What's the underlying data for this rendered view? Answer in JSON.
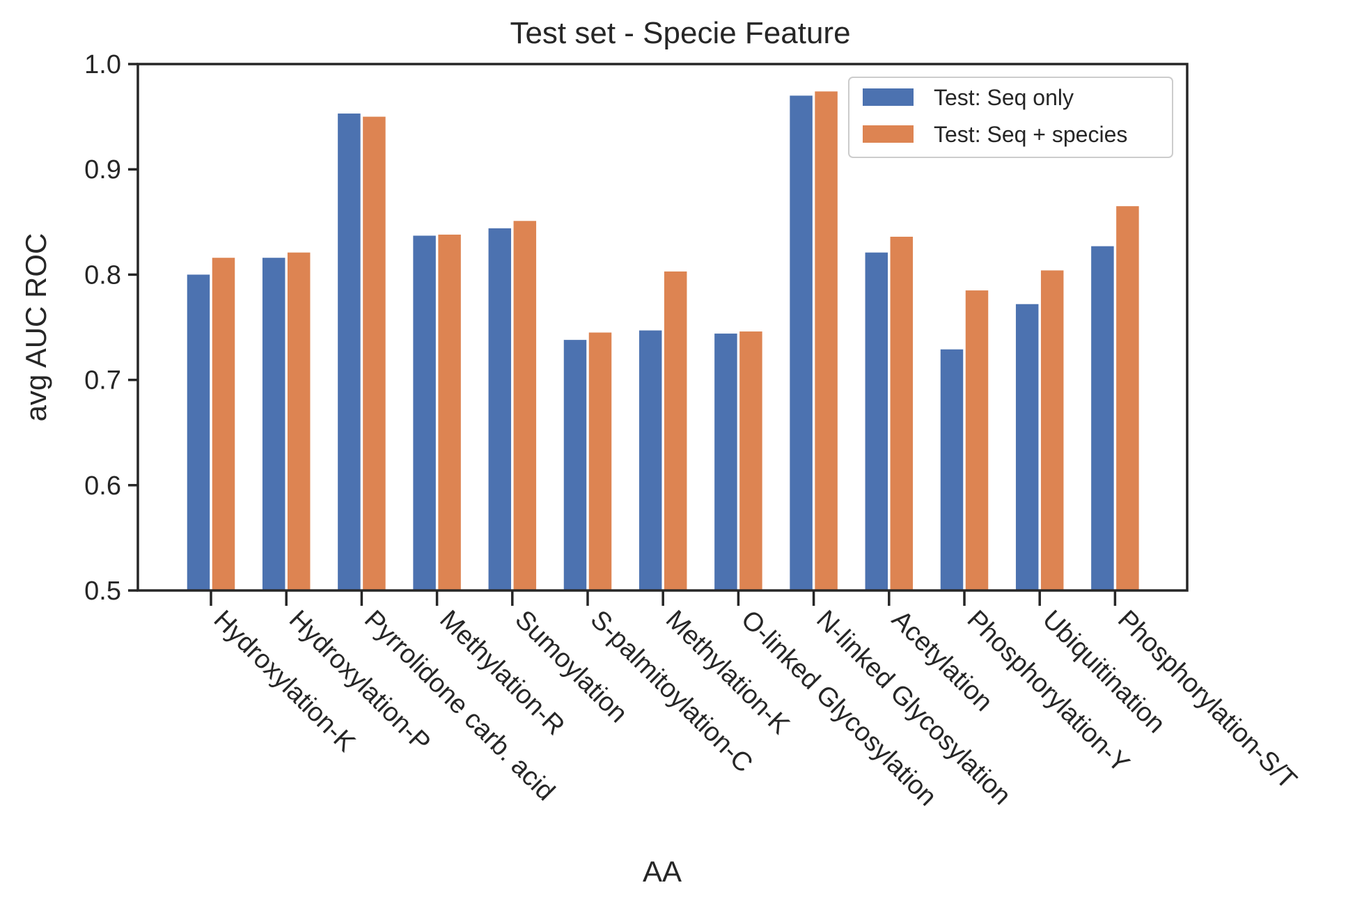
{
  "chart_data": {
    "type": "bar",
    "title": "Test set - Specie Feature",
    "xlabel": "AA",
    "ylabel": "avg AUC ROC",
    "ylim": [
      0.5,
      1.0
    ],
    "yticks": [
      "0.5",
      "0.6",
      "0.7",
      "0.8",
      "0.9",
      "1.0"
    ],
    "grid": false,
    "legend_position": "top-right",
    "categories": [
      "Hydroxylation-K",
      "Hydroxylation-P",
      "Pyrrolidone carb. acid",
      "Methylation-R",
      "Sumoylation",
      "S-palmitoylation-C",
      "Methylation-K",
      "O-linked Glycosylation",
      "N-linked Glycosylation",
      "Acetylation",
      "Phosphorylation-Y",
      "Ubiquitination",
      "Phosphorylation-S/T"
    ],
    "series": [
      {
        "name": "Test: Seq only",
        "color": "#4c72b0",
        "values": [
          0.8,
          0.816,
          0.953,
          0.837,
          0.844,
          0.738,
          0.747,
          0.744,
          0.97,
          0.821,
          0.729,
          0.772,
          0.827
        ]
      },
      {
        "name": "Test: Seq + species",
        "color": "#dd8452",
        "values": [
          0.816,
          0.821,
          0.95,
          0.838,
          0.851,
          0.745,
          0.803,
          0.746,
          0.974,
          0.836,
          0.785,
          0.804,
          0.865
        ]
      }
    ]
  }
}
